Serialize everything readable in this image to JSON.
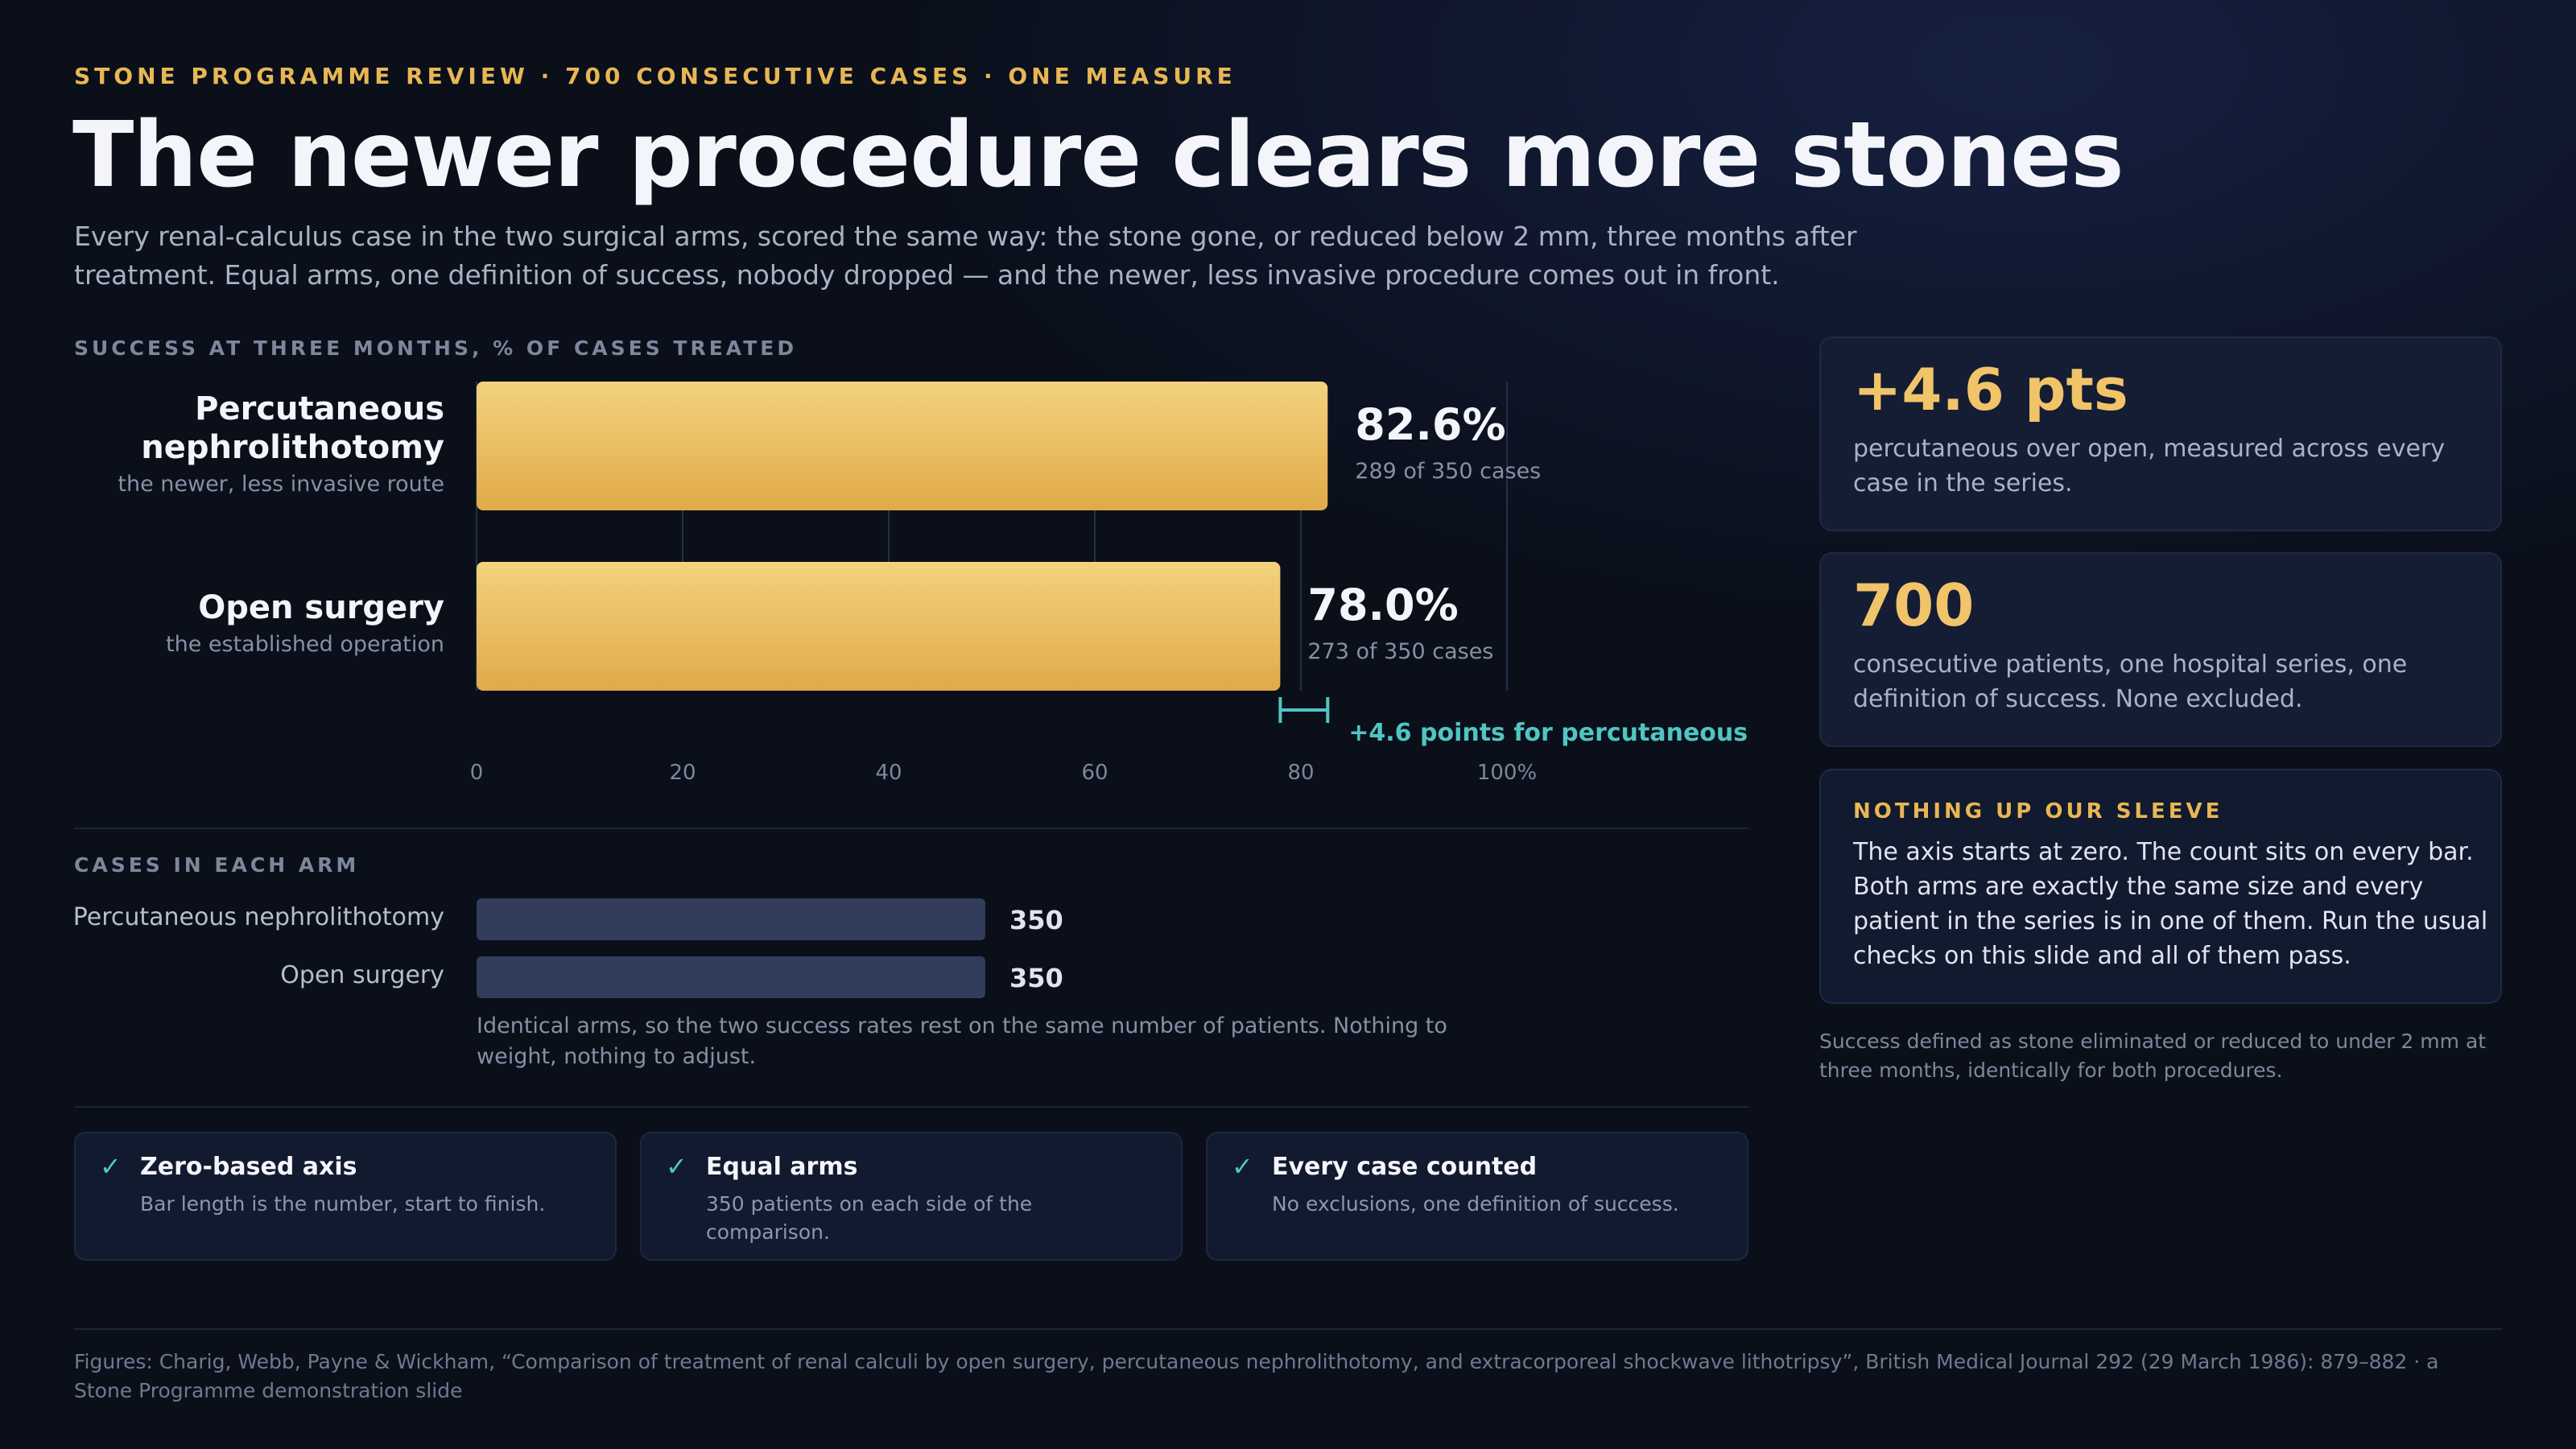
{
  "header": {
    "eyebrow": "STONE PROGRAMME REVIEW · 700 CONSECUTIVE CASES · ONE MEASURE",
    "title": "The newer procedure clears more stones",
    "subtitle": "Every renal-calculus case in the two surgical arms, scored the same way: the stone gone, or reduced below 2 mm, three months after treatment. Equal arms, one definition of success, nobody dropped — and the newer, less invasive procedure comes out in front."
  },
  "chart_data": [
    {
      "type": "bar",
      "orientation": "horizontal",
      "title": "SUCCESS AT THREE MONTHS, % OF CASES TREATED",
      "categories": [
        "Percutaneous nephrolithotomy",
        "Open surgery"
      ],
      "category_notes": [
        "the newer, less invasive route",
        "the established operation"
      ],
      "values": [
        82.6,
        78.0
      ],
      "value_labels": [
        "82.6%",
        "78.0%"
      ],
      "count_labels": [
        "289 of 350 cases",
        "273 of 350 cases"
      ],
      "xlim": [
        0,
        100
      ],
      "x_ticks": [
        "0",
        "20",
        "40",
        "60",
        "80",
        "100%"
      ],
      "x_tick_values": [
        0,
        20,
        40,
        60,
        80,
        100
      ],
      "grid": true,
      "annotation": "+4.6 points for percutaneous",
      "colors": {
        "bar": "#e8b655",
        "bar_light": "#f3d27e",
        "annotation": "#4fc6c2"
      }
    },
    {
      "type": "bar",
      "orientation": "horizontal",
      "title": "CASES IN EACH ARM",
      "categories": [
        "Percutaneous nephrolithotomy",
        "Open surgery"
      ],
      "values": [
        350,
        350
      ],
      "value_labels": [
        "350",
        "350"
      ],
      "colors": {
        "bar": "#323d5c"
      }
    }
  ],
  "rows": [
    {
      "name": "Percutaneous nephrolithotomy",
      "note": "the newer, less invasive route"
    },
    {
      "name": "Open surgery",
      "note": "the established operation"
    }
  ],
  "counts": {
    "note": "Identical arms, so the two success rates rest on the same number of patients. Nothing to weight, nothing to adjust."
  },
  "checks": [
    {
      "title": "Zero-based axis",
      "desc": "Bar length is the number, start to finish."
    },
    {
      "title": "Equal arms",
      "desc": "350 patients on each side of the comparison."
    },
    {
      "title": "Every case counted",
      "desc": "No exclusions, one definition of success."
    }
  ],
  "stats": [
    {
      "big": "+4.6 pts",
      "desc": "percutaneous over open, measured across every case in the series."
    },
    {
      "big": "700",
      "desc": "consecutive patients, one hospital series, one definition of success. None excluded."
    }
  ],
  "sleeve": {
    "heading": "NOTHING UP OUR SLEEVE",
    "body": "The axis starts at zero. The count sits on every bar. Both arms are exactly the same size and every patient in the series is in one of them. Run the usual checks on this slide and all of them pass."
  },
  "side_note": "Success defined as stone eliminated or reduced to under 2 mm at three months, identically for both procedures.",
  "footer": "Figures: Charig, Webb, Payne & Wickham, “Comparison of treatment of renal calculi by open surgery, percutaneous nephrolithotomy, and extracorporeal shockwave lithotripsy”, British Medical Journal 292 (29 March 1986): 879–882 · a Stone Programme demonstration slide",
  "icons": {
    "check": "check-icon"
  }
}
